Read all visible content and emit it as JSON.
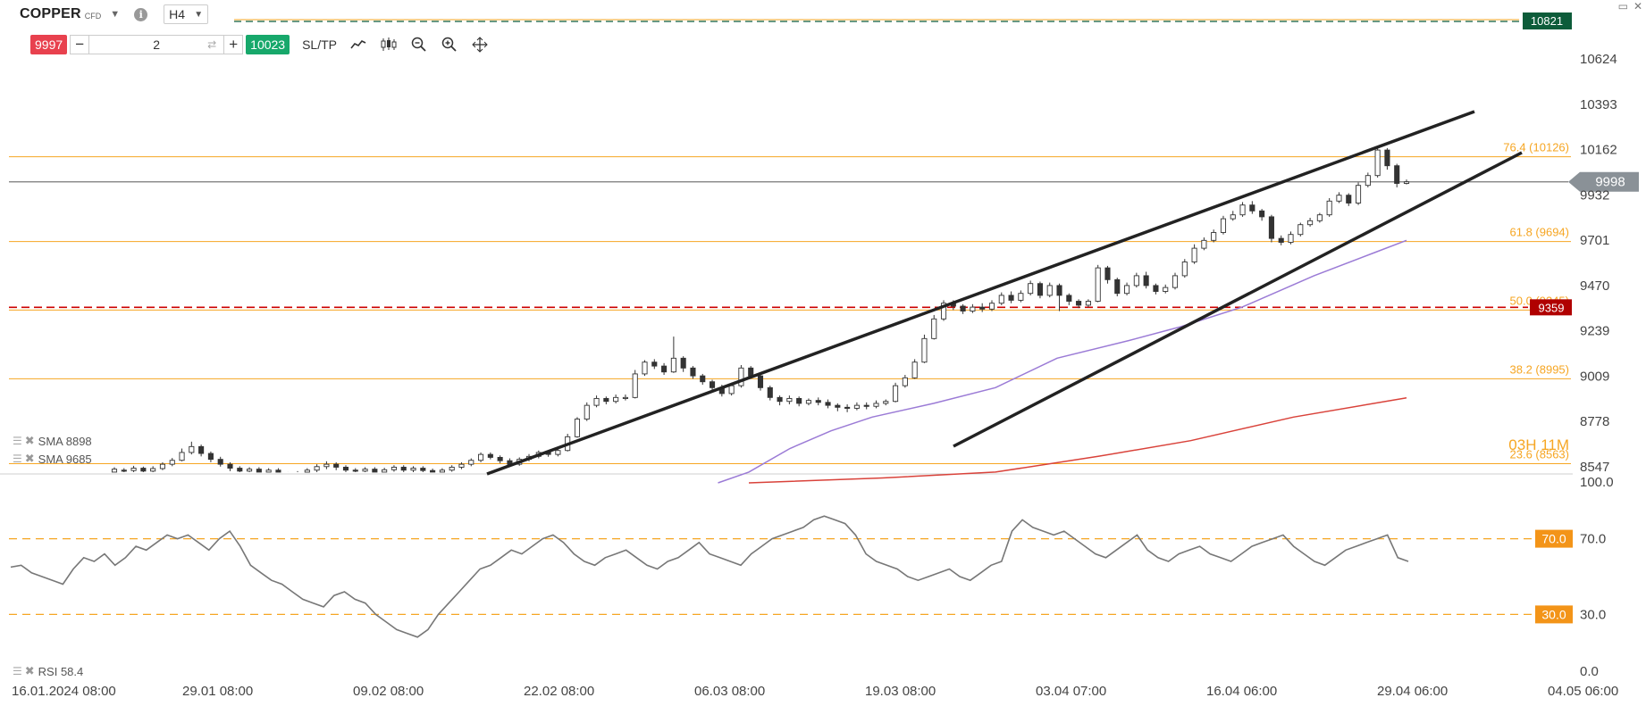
{
  "header": {
    "symbol": "COPPER",
    "symbol_type": "CFD",
    "timeframe": "H4",
    "info_icon": "info-icon",
    "minimize_icon": "minimize-icon",
    "close_icon": "close-icon"
  },
  "trade_panel": {
    "sell_price": "9997",
    "quantity": "2",
    "buy_price": "10023",
    "sltp_label": "SL/TP",
    "minus_label": "−",
    "plus_label": "+"
  },
  "tools": [
    "line-chart-icon",
    "candlestick-icon",
    "zoom-out-icon",
    "zoom-in-icon",
    "move-icon"
  ],
  "price_axis": {
    "ticks": [
      "10624",
      "10393",
      "10162",
      "9932",
      "9701",
      "9470",
      "9239",
      "9009",
      "8778",
      "8547"
    ],
    "current_price": "9998",
    "top_line_price": "10821",
    "red_line_price": "9359"
  },
  "fib_levels": [
    {
      "label": "76.4 (10126)"
    },
    {
      "label": "61.8 (9694)"
    },
    {
      "label": "50.0 (9345)"
    },
    {
      "label": "38.2 (8995)"
    },
    {
      "label": "23.6 (8563)"
    }
  ],
  "countdown": "03H 11M",
  "indicators": {
    "sma1_label": "SMA 8898",
    "sma2_label": "SMA 9685",
    "rsi_label": "RSI 58.4"
  },
  "rsi_axis": {
    "ticks": [
      "100.0",
      "70.0",
      "30.0",
      "0.0"
    ],
    "upper_level": "70.0",
    "lower_level": "30.0"
  },
  "time_axis": [
    "16.01.2024 08:00",
    "29.01 08:00",
    "09.02 08:00",
    "22.02 08:00",
    "06.03 08:00",
    "19.03 08:00",
    "03.04 07:00",
    "16.04 06:00",
    "29.04 06:00",
    "04.05 06:00"
  ],
  "colors": {
    "fib": "#f6a623",
    "sell": "#e8414e",
    "buy": "#17a86b",
    "top_line": "#0d5c3a",
    "red_line": "#cc0000",
    "sma_fast": "#9b7bd6",
    "sma_slow": "#d9423a",
    "rsi_line": "#777777",
    "trendline": "#222222"
  },
  "chart_data": {
    "type": "candlestick",
    "title": "",
    "ylim": [
      8547,
      10624
    ],
    "candles": [
      [
        8520,
        8535,
        8545,
        8510
      ],
      [
        8530,
        8528,
        8540,
        8515
      ],
      [
        8528,
        8540,
        8552,
        8520
      ],
      [
        8540,
        8525,
        8548,
        8515
      ],
      [
        8525,
        8538,
        8550,
        8518
      ],
      [
        8538,
        8560,
        8570,
        8530
      ],
      [
        8560,
        8580,
        8592,
        8550
      ],
      [
        8580,
        8620,
        8640,
        8575
      ],
      [
        8620,
        8650,
        8675,
        8610
      ],
      [
        8650,
        8615,
        8660,
        8600
      ],
      [
        8615,
        8585,
        8625,
        8570
      ],
      [
        8585,
        8560,
        8598,
        8548
      ],
      [
        8560,
        8540,
        8570,
        8525
      ],
      [
        8540,
        8525,
        8550,
        8515
      ],
      [
        8525,
        8535,
        8545,
        8510
      ],
      [
        8535,
        8520,
        8545,
        8500
      ],
      [
        8520,
        8530,
        8540,
        8505
      ],
      [
        8530,
        8510,
        8540,
        8490
      ],
      [
        8510,
        8500,
        8520,
        8480
      ],
      [
        8500,
        8515,
        8525,
        8485
      ],
      [
        8515,
        8530,
        8540,
        8505
      ],
      [
        8530,
        8548,
        8560,
        8520
      ],
      [
        8548,
        8560,
        8575,
        8535
      ],
      [
        8560,
        8545,
        8570,
        8530
      ],
      [
        8545,
        8530,
        8555,
        8520
      ],
      [
        8530,
        8525,
        8540,
        8510
      ],
      [
        8525,
        8535,
        8545,
        8512
      ],
      [
        8535,
        8520,
        8545,
        8505
      ],
      [
        8520,
        8532,
        8542,
        8510
      ],
      [
        8532,
        8545,
        8555,
        8522
      ],
      [
        8545,
        8530,
        8555,
        8520
      ],
      [
        8530,
        8540,
        8550,
        8518
      ],
      [
        8540,
        8528,
        8550,
        8515
      ],
      [
        8528,
        8520,
        8538,
        8505
      ],
      [
        8520,
        8530,
        8540,
        8510
      ],
      [
        8530,
        8545,
        8555,
        8522
      ],
      [
        8545,
        8560,
        8570,
        8535
      ],
      [
        8560,
        8580,
        8590,
        8550
      ],
      [
        8580,
        8610,
        8620,
        8570
      ],
      [
        8610,
        8595,
        8620,
        8585
      ],
      [
        8595,
        8578,
        8605,
        8565
      ],
      [
        8578,
        8560,
        8590,
        8548
      ],
      [
        8560,
        8585,
        8595,
        8552
      ],
      [
        8585,
        8600,
        8612,
        8575
      ],
      [
        8600,
        8620,
        8630,
        8590
      ],
      [
        8620,
        8610,
        8632,
        8598
      ],
      [
        8610,
        8630,
        8640,
        8600
      ],
      [
        8630,
        8700,
        8715,
        8625
      ],
      [
        8700,
        8790,
        8800,
        8695
      ],
      [
        8790,
        8860,
        8875,
        8780
      ],
      [
        8860,
        8895,
        8910,
        8850
      ],
      [
        8895,
        8880,
        8905,
        8865
      ],
      [
        8880,
        8900,
        8915,
        8870
      ],
      [
        8900,
        8900,
        8915,
        8885
      ],
      [
        8900,
        9020,
        9040,
        8895
      ],
      [
        9020,
        9080,
        9090,
        9010
      ],
      [
        9080,
        9060,
        9095,
        9045
      ],
      [
        9060,
        9030,
        9075,
        9015
      ],
      [
        9030,
        9100,
        9210,
        9025
      ],
      [
        9100,
        9050,
        9110,
        9030
      ],
      [
        9050,
        9010,
        9060,
        8995
      ],
      [
        9010,
        8980,
        9020,
        8965
      ],
      [
        8980,
        8950,
        8990,
        8935
      ],
      [
        8950,
        8920,
        8965,
        8905
      ],
      [
        8920,
        8960,
        8975,
        8910
      ],
      [
        8960,
        9050,
        9065,
        8950
      ],
      [
        9050,
        9010,
        9060,
        8995
      ],
      [
        9010,
        8950,
        9020,
        8935
      ],
      [
        8950,
        8900,
        8960,
        8885
      ],
      [
        8900,
        8880,
        8910,
        8860
      ],
      [
        8880,
        8895,
        8910,
        8865
      ],
      [
        8895,
        8870,
        8905,
        8855
      ],
      [
        8870,
        8885,
        8895,
        8860
      ],
      [
        8885,
        8875,
        8900,
        8860
      ],
      [
        8875,
        8860,
        8890,
        8845
      ],
      [
        8860,
        8850,
        8870,
        8830
      ],
      [
        8850,
        8845,
        8865,
        8825
      ],
      [
        8845,
        8860,
        8875,
        8835
      ],
      [
        8860,
        8855,
        8875,
        8840
      ],
      [
        8855,
        8870,
        8885,
        8845
      ],
      [
        8870,
        8880,
        8890,
        8860
      ],
      [
        8880,
        8960,
        8975,
        8875
      ],
      [
        8960,
        9000,
        9015,
        8950
      ],
      [
        9000,
        9080,
        9095,
        8995
      ],
      [
        9080,
        9200,
        9220,
        9075
      ],
      [
        9200,
        9300,
        9320,
        9195
      ],
      [
        9300,
        9380,
        9395,
        9290
      ],
      [
        9380,
        9365,
        9395,
        9345
      ],
      [
        9365,
        9340,
        9375,
        9325
      ],
      [
        9340,
        9360,
        9375,
        9330
      ],
      [
        9360,
        9350,
        9380,
        9335
      ],
      [
        9350,
        9380,
        9395,
        9340
      ],
      [
        9380,
        9420,
        9435,
        9370
      ],
      [
        9420,
        9395,
        9440,
        9380
      ],
      [
        9395,
        9430,
        9445,
        9385
      ],
      [
        9430,
        9480,
        9495,
        9420
      ],
      [
        9480,
        9420,
        9490,
        9405
      ],
      [
        9420,
        9470,
        9485,
        9410
      ],
      [
        9470,
        9420,
        9480,
        9340
      ],
      [
        9420,
        9390,
        9430,
        9370
      ],
      [
        9390,
        9370,
        9400,
        9355
      ],
      [
        9370,
        9390,
        9400,
        9360
      ],
      [
        9390,
        9560,
        9575,
        9385
      ],
      [
        9560,
        9500,
        9570,
        9480
      ],
      [
        9500,
        9430,
        9510,
        9415
      ],
      [
        9430,
        9470,
        9485,
        9420
      ],
      [
        9470,
        9520,
        9535,
        9460
      ],
      [
        9520,
        9470,
        9540,
        9455
      ],
      [
        9470,
        9440,
        9480,
        9425
      ],
      [
        9440,
        9460,
        9475,
        9430
      ],
      [
        9460,
        9520,
        9535,
        9450
      ],
      [
        9520,
        9590,
        9605,
        9510
      ],
      [
        9590,
        9660,
        9680,
        9580
      ],
      [
        9660,
        9700,
        9715,
        9650
      ],
      [
        9700,
        9740,
        9755,
        9690
      ],
      [
        9740,
        9810,
        9825,
        9730
      ],
      [
        9810,
        9830,
        9850,
        9800
      ],
      [
        9830,
        9880,
        9895,
        9820
      ],
      [
        9880,
        9850,
        9900,
        9835
      ],
      [
        9850,
        9820,
        9860,
        9800
      ],
      [
        9820,
        9710,
        9830,
        9690
      ],
      [
        9710,
        9690,
        9725,
        9675
      ],
      [
        9690,
        9730,
        9745,
        9680
      ],
      [
        9730,
        9780,
        9790,
        9720
      ],
      [
        9780,
        9800,
        9815,
        9770
      ],
      [
        9800,
        9830,
        9840,
        9790
      ],
      [
        9830,
        9900,
        9915,
        9820
      ],
      [
        9900,
        9930,
        9945,
        9890
      ],
      [
        9930,
        9890,
        9940,
        9875
      ],
      [
        9890,
        9980,
        9995,
        9880
      ],
      [
        9980,
        10030,
        10045,
        9970
      ],
      [
        10030,
        10160,
        10180,
        10020
      ],
      [
        10160,
        10080,
        10170,
        10060
      ],
      [
        10080,
        9990,
        10090,
        9970
      ],
      [
        9990,
        9998,
        10010,
        9985
      ]
    ],
    "sma_fast_points": [
      [
        0.69,
        8465
      ],
      [
        0.72,
        8520
      ],
      [
        0.76,
        8640
      ],
      [
        0.8,
        8730
      ],
      [
        0.84,
        8800
      ],
      [
        0.9,
        8870
      ],
      [
        0.96,
        8950
      ],
      [
        1.02,
        9100
      ],
      [
        1.09,
        9190
      ],
      [
        1.14,
        9260
      ],
      [
        1.2,
        9360
      ],
      [
        1.27,
        9520
      ],
      [
        1.33,
        9640
      ],
      [
        1.36,
        9700
      ]
    ],
    "sma_slow_points": [
      [
        0.72,
        8465
      ],
      [
        0.85,
        8490
      ],
      [
        0.96,
        8520
      ],
      [
        1.06,
        8600
      ],
      [
        1.15,
        8680
      ],
      [
        1.25,
        8800
      ],
      [
        1.36,
        8898
      ]
    ],
    "rsi_values": [
      55,
      56,
      52,
      50,
      48,
      46,
      54,
      60,
      58,
      62,
      56,
      60,
      66,
      64,
      68,
      72,
      70,
      72,
      68,
      64,
      70,
      74,
      66,
      56,
      52,
      48,
      46,
      42,
      38,
      36,
      34,
      40,
      42,
      38,
      36,
      30,
      26,
      22,
      20,
      18,
      22,
      30,
      36,
      42,
      48,
      54,
      56,
      60,
      64,
      62,
      66,
      70,
      72,
      68,
      62,
      58,
      56,
      60,
      62,
      64,
      60,
      56,
      54,
      58,
      60,
      64,
      68,
      62,
      60,
      58,
      56,
      62,
      66,
      70,
      72,
      74,
      76,
      80,
      82,
      80,
      78,
      72,
      62,
      58,
      56,
      54,
      50,
      48,
      50,
      52,
      54,
      50,
      48,
      52,
      56,
      58,
      74,
      80,
      76,
      74,
      72,
      74,
      70,
      66,
      62,
      60,
      64,
      68,
      72,
      64,
      60,
      58,
      62,
      64,
      66,
      62,
      60,
      58,
      62,
      66,
      68,
      70,
      72,
      66,
      62,
      58,
      56,
      60,
      64,
      66,
      68,
      70,
      72,
      60,
      58
    ],
    "rsi_levels": [
      70,
      30
    ],
    "rsi_ylim": [
      0,
      100
    ]
  }
}
